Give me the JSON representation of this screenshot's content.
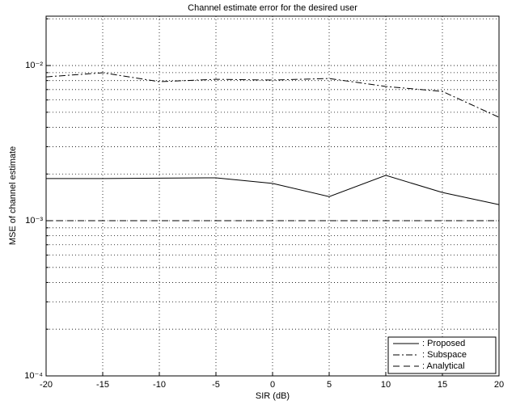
{
  "chart_data": {
    "type": "line",
    "title": "Channel estimate error for the desired user",
    "xlabel": "SIR (dB)",
    "ylabel": "MSE of channel estimate",
    "x": [
      -20,
      -15,
      -10,
      -5,
      0,
      5,
      10,
      15,
      20
    ],
    "series": [
      {
        "name": ": Proposed",
        "color": "#000000",
        "style": "solid",
        "values": [
          0.00187,
          0.00187,
          0.00188,
          0.00189,
          0.00174,
          0.00143,
          0.00196,
          0.00152,
          0.00127
        ]
      },
      {
        "name": ": Subspace",
        "color": "#000000",
        "style": "dashdot",
        "values": [
          0.00845,
          0.00898,
          0.00787,
          0.00815,
          0.00806,
          0.00825,
          0.00733,
          0.00681,
          0.00464
        ]
      },
      {
        "name": ": Analytical",
        "color": "#000000",
        "style": "dashed",
        "values": [
          0.001,
          0.001,
          0.001,
          0.001,
          0.001,
          0.001,
          0.001,
          0.001,
          0.001
        ]
      }
    ],
    "xlim": [
      -20,
      20
    ],
    "xticks": [
      -20,
      -15,
      -10,
      -5,
      0,
      5,
      10,
      15,
      20
    ],
    "ylim": [
      0.0001,
      0.0208
    ],
    "ylog": true,
    "yticks": [
      {
        "value": 0.0001,
        "label": "10⁻⁴"
      },
      {
        "value": 0.001,
        "label": "10⁻³"
      },
      {
        "value": 0.01,
        "label": "10⁻²"
      }
    ],
    "yminorticks": [
      0.0002,
      0.0003,
      0.0004,
      0.0005,
      0.0006,
      0.0007,
      0.0008,
      0.0009,
      0.002,
      0.003,
      0.004,
      0.005,
      0.006,
      0.007,
      0.008,
      0.009,
      0.02
    ],
    "grid": true,
    "legend": "lower right"
  }
}
